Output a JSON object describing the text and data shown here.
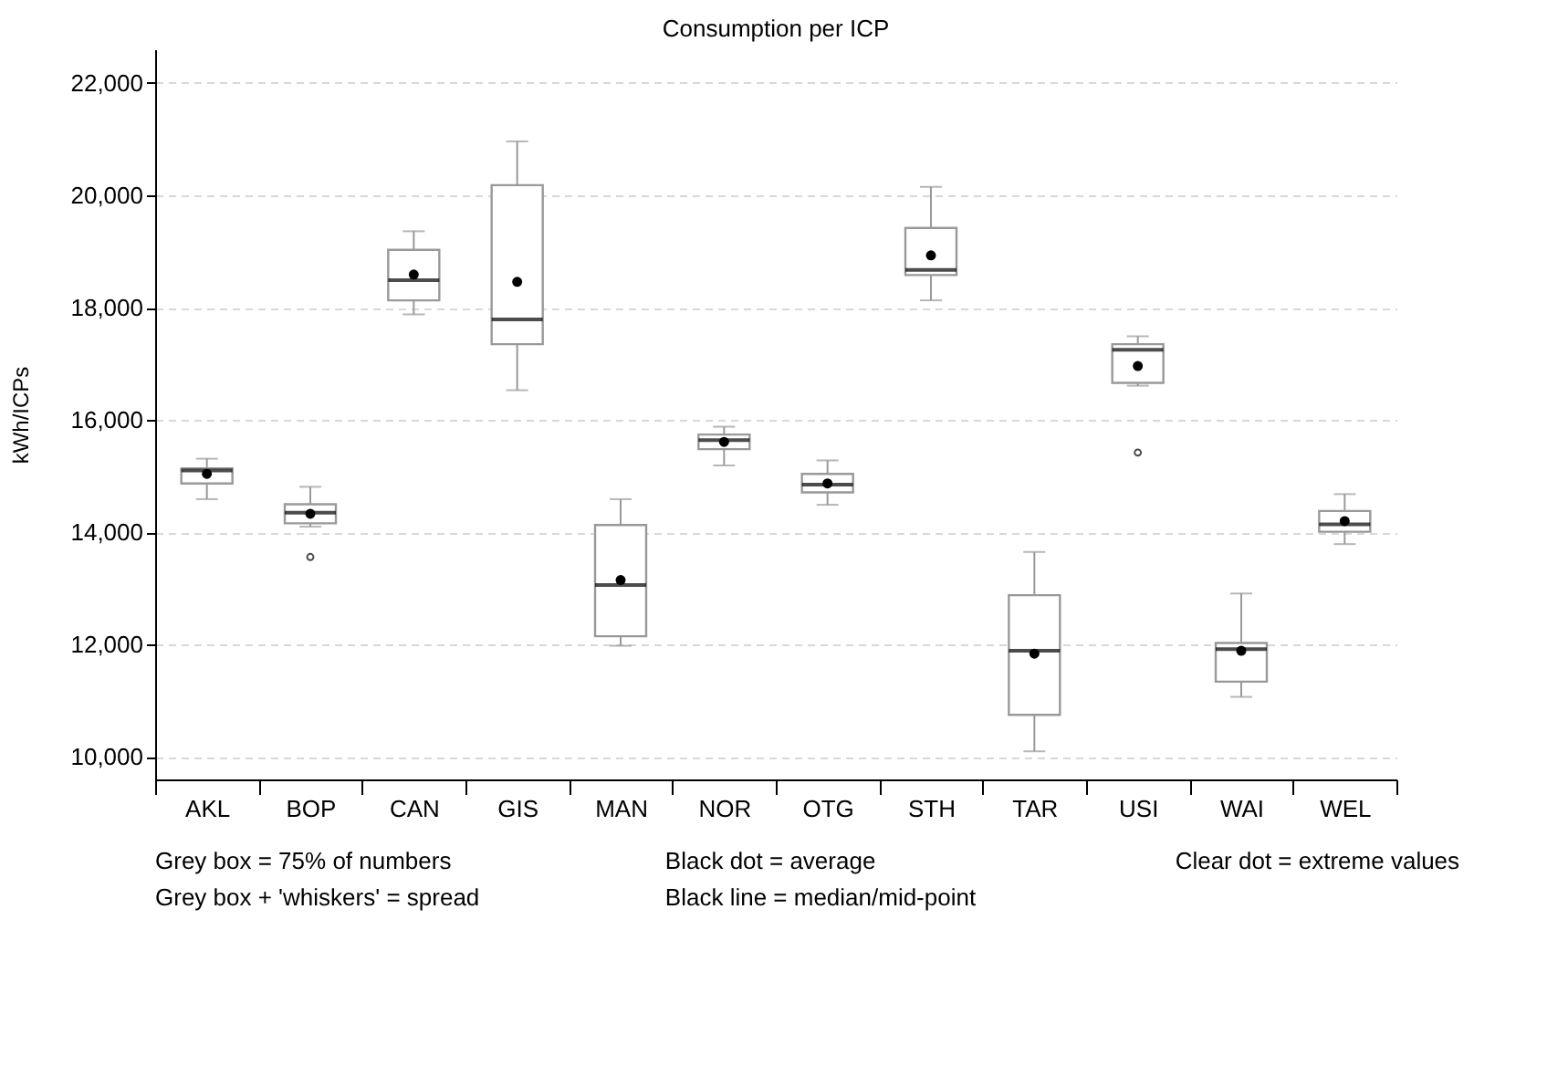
{
  "chart_data": {
    "type": "box",
    "title": "Consumption per ICP",
    "ylabel": "kWh/ICPs",
    "categories": [
      "AKL",
      "BOP",
      "CAN",
      "GIS",
      "MAN",
      "NOR",
      "OTG",
      "STH",
      "TAR",
      "USI",
      "WAI",
      "WEL"
    ],
    "boxes": [
      {
        "low": 14590,
        "q1": 14870,
        "median": 15100,
        "q3": 15140,
        "high": 15310,
        "mean": 15040
      },
      {
        "low": 14100,
        "q1": 14160,
        "median": 14350,
        "q3": 14500,
        "high": 14810,
        "mean": 14330,
        "outliers": [
          13560
        ]
      },
      {
        "low": 17880,
        "q1": 18130,
        "median": 18490,
        "q3": 19030,
        "high": 19360,
        "mean": 18590
      },
      {
        "low": 16530,
        "q1": 17350,
        "median": 17790,
        "q3": 20180,
        "high": 20960,
        "mean": 18460
      },
      {
        "low": 11980,
        "q1": 12150,
        "median": 13060,
        "q3": 14130,
        "high": 14590,
        "mean": 13150
      },
      {
        "low": 15190,
        "q1": 15480,
        "median": 15640,
        "q3": 15740,
        "high": 15880,
        "mean": 15610
      },
      {
        "low": 14490,
        "q1": 14710,
        "median": 14850,
        "q3": 15040,
        "high": 15280,
        "mean": 14870
      },
      {
        "low": 18130,
        "q1": 18580,
        "median": 18670,
        "q3": 19420,
        "high": 20150,
        "mean": 18930
      },
      {
        "low": 10100,
        "q1": 10750,
        "median": 11890,
        "q3": 12880,
        "high": 13650,
        "mean": 11840
      },
      {
        "low": 16610,
        "q1": 16660,
        "median": 17250,
        "q3": 17350,
        "high": 17490,
        "mean": 16960,
        "outliers": [
          15420
        ]
      },
      {
        "low": 11070,
        "q1": 11340,
        "median": 11920,
        "q3": 12030,
        "high": 12910,
        "mean": 11890
      },
      {
        "low": 13790,
        "q1": 14010,
        "median": 14140,
        "q3": 14380,
        "high": 14680,
        "mean": 14200
      }
    ],
    "color": "#999999",
    "ylim": [
      9600,
      22600
    ],
    "yticks": [
      {
        "value": 10000,
        "label": "10,000"
      },
      {
        "value": 12000,
        "label": "12,000"
      },
      {
        "value": 14000,
        "label": "14,000"
      },
      {
        "value": 16000,
        "label": "16,000"
      },
      {
        "value": 18000,
        "label": "18,000"
      },
      {
        "value": 20000,
        "label": "20,000"
      },
      {
        "value": 22000,
        "label": "22,000"
      }
    ],
    "grid": "y",
    "annotations": [
      "Grey box = 75% of numbers",
      "Grey box + 'whiskers' = spread",
      "Black dot = average",
      "Black line = median/mid-point",
      "Clear dot = extreme values"
    ]
  }
}
